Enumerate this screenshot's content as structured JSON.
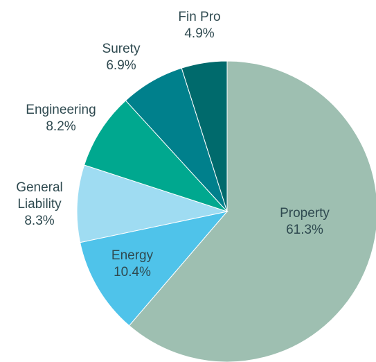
{
  "chart_data": {
    "type": "pie",
    "categories": [
      "Property",
      "Energy",
      "General Liability",
      "Engineering",
      "Surety",
      "Fin Pro"
    ],
    "values": [
      61.3,
      10.4,
      8.3,
      8.2,
      6.9,
      4.9
    ],
    "value_labels": [
      "61.3%",
      "10.4%",
      "8.3%",
      "8.2%",
      "6.9%",
      "4.9%"
    ],
    "colors": [
      "#9ebfb1",
      "#4fc3ea",
      "#9fdcf2",
      "#00a88f",
      "#00808c",
      "#006a6c"
    ]
  }
}
